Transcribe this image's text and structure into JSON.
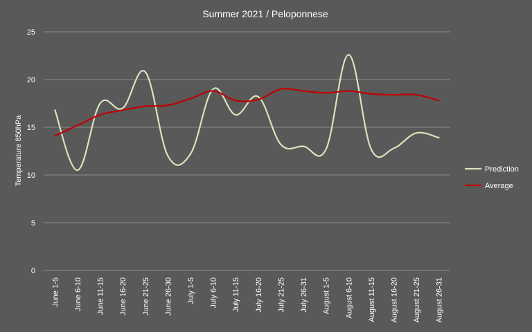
{
  "chart_data": {
    "type": "line",
    "title": "Summer 2021 / Peloponnese",
    "ylabel": "Temperature 850hPa",
    "xlabel": "",
    "ylim": [
      0,
      25
    ],
    "yticks": [
      0,
      5,
      10,
      15,
      20,
      25
    ],
    "grid": true,
    "legend_position": "right",
    "categories": [
      "June 1-5",
      "June 6-10",
      "June 11-15",
      "June 16-20",
      "June 21-25",
      "June 26-30",
      "July 1-5",
      "July 6-10",
      "July 11-15",
      "July 16-20",
      "July 21-25",
      "July 26-31",
      "August 1-5",
      "August 6-10",
      "August 11-15",
      "August 16-20",
      "August 21-25",
      "August 26-31"
    ],
    "series": [
      {
        "name": "Prediction",
        "color": "#d7e4bd",
        "values": [
          16.8,
          10.5,
          17.5,
          17.0,
          20.8,
          12.0,
          12.2,
          19.0,
          16.3,
          18.2,
          13.2,
          13.0,
          12.7,
          22.6,
          12.7,
          12.8,
          14.4,
          13.9
        ]
      },
      {
        "name": "Average",
        "color": "#c00000",
        "values": [
          14.1,
          15.2,
          16.3,
          16.8,
          17.2,
          17.3,
          18.0,
          18.8,
          17.8,
          17.9,
          19.0,
          18.8,
          18.6,
          18.8,
          18.5,
          18.4,
          18.4,
          17.8
        ]
      }
    ]
  },
  "colors": {
    "background": "#595959",
    "gridline": "#8a8a8a",
    "text": "#ffffff"
  }
}
